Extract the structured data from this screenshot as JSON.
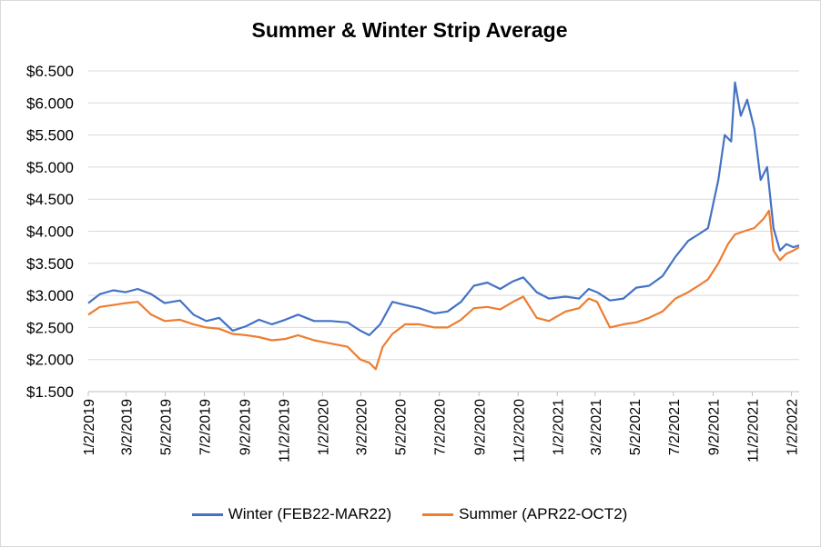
{
  "chart_data": {
    "type": "line",
    "title": "Summer & Winter Strip Average",
    "xlabel": "",
    "ylabel": "",
    "x_range": [
      "2019-01-02",
      "2022-01-14"
    ],
    "ylim": [
      1.5,
      6.5
    ],
    "y_ticks": [
      1.5,
      2.0,
      2.5,
      3.0,
      3.5,
      4.0,
      4.5,
      5.0,
      5.5,
      6.0,
      6.5
    ],
    "y_tick_labels": [
      "$1.500",
      "$2.000",
      "$2.500",
      "$3.000",
      "$3.500",
      "$4.000",
      "$4.500",
      "$5.000",
      "$5.500",
      "$6.000",
      "$6.500"
    ],
    "x_ticks": [
      "2019-01-02",
      "2019-03-02",
      "2019-05-02",
      "2019-07-02",
      "2019-09-02",
      "2019-11-02",
      "2020-01-02",
      "2020-03-02",
      "2020-05-02",
      "2020-07-02",
      "2020-09-02",
      "2020-11-02",
      "2021-01-02",
      "2021-03-02",
      "2021-05-02",
      "2021-07-02",
      "2021-09-02",
      "2021-11-02",
      "2022-01-02"
    ],
    "x_tick_labels": [
      "1/2/2019",
      "3/2/2019",
      "5/2/2019",
      "7/2/2019",
      "9/2/2019",
      "11/2/2019",
      "1/2/2020",
      "3/2/2020",
      "5/2/2020",
      "7/2/2020",
      "9/2/2020",
      "11/2/2020",
      "1/2/2021",
      "3/2/2021",
      "5/2/2021",
      "7/2/2021",
      "9/2/2021",
      "11/2/2021",
      "1/2/2022"
    ],
    "grid": true,
    "legend_position": "bottom",
    "series": [
      {
        "name": "Winter (FEB22-MAR22)",
        "color": "#4472c4",
        "points": [
          [
            "2019-01-02",
            2.88
          ],
          [
            "2019-01-20",
            3.02
          ],
          [
            "2019-02-10",
            3.08
          ],
          [
            "2019-03-01",
            3.05
          ],
          [
            "2019-03-20",
            3.1
          ],
          [
            "2019-04-10",
            3.02
          ],
          [
            "2019-05-01",
            2.88
          ],
          [
            "2019-05-25",
            2.92
          ],
          [
            "2019-06-15",
            2.7
          ],
          [
            "2019-07-05",
            2.6
          ],
          [
            "2019-07-25",
            2.65
          ],
          [
            "2019-08-15",
            2.45
          ],
          [
            "2019-09-05",
            2.52
          ],
          [
            "2019-09-25",
            2.62
          ],
          [
            "2019-10-15",
            2.55
          ],
          [
            "2019-11-05",
            2.62
          ],
          [
            "2019-11-25",
            2.7
          ],
          [
            "2019-12-20",
            2.6
          ],
          [
            "2020-01-15",
            2.6
          ],
          [
            "2020-02-10",
            2.58
          ],
          [
            "2020-03-01",
            2.45
          ],
          [
            "2020-03-15",
            2.38
          ],
          [
            "2020-04-01",
            2.55
          ],
          [
            "2020-04-20",
            2.9
          ],
          [
            "2020-05-10",
            2.85
          ],
          [
            "2020-06-01",
            2.8
          ],
          [
            "2020-06-25",
            2.72
          ],
          [
            "2020-07-15",
            2.75
          ],
          [
            "2020-08-05",
            2.9
          ],
          [
            "2020-08-25",
            3.15
          ],
          [
            "2020-09-15",
            3.2
          ],
          [
            "2020-10-05",
            3.1
          ],
          [
            "2020-10-25",
            3.22
          ],
          [
            "2020-11-10",
            3.28
          ],
          [
            "2020-12-01",
            3.05
          ],
          [
            "2020-12-20",
            2.95
          ],
          [
            "2021-01-15",
            2.98
          ],
          [
            "2021-02-05",
            2.95
          ],
          [
            "2021-02-20",
            3.1
          ],
          [
            "2021-03-05",
            3.05
          ],
          [
            "2021-03-25",
            2.92
          ],
          [
            "2021-04-15",
            2.95
          ],
          [
            "2021-05-05",
            3.12
          ],
          [
            "2021-05-25",
            3.15
          ],
          [
            "2021-06-15",
            3.3
          ],
          [
            "2021-07-05",
            3.6
          ],
          [
            "2021-07-25",
            3.85
          ],
          [
            "2021-08-10",
            3.95
          ],
          [
            "2021-08-25",
            4.05
          ],
          [
            "2021-09-10",
            4.8
          ],
          [
            "2021-09-20",
            5.5
          ],
          [
            "2021-09-30",
            5.4
          ],
          [
            "2021-10-06",
            6.32
          ],
          [
            "2021-10-15",
            5.8
          ],
          [
            "2021-10-25",
            6.05
          ],
          [
            "2021-11-05",
            5.6
          ],
          [
            "2021-11-15",
            4.8
          ],
          [
            "2021-11-25",
            5.0
          ],
          [
            "2021-12-05",
            4.05
          ],
          [
            "2021-12-15",
            3.7
          ],
          [
            "2021-12-25",
            3.8
          ],
          [
            "2022-01-05",
            3.75
          ],
          [
            "2022-01-14",
            3.78
          ]
        ]
      },
      {
        "name": "Summer  (APR22-OCT2)",
        "color": "#ed7d31",
        "points": [
          [
            "2019-01-02",
            2.7
          ],
          [
            "2019-01-20",
            2.82
          ],
          [
            "2019-02-10",
            2.85
          ],
          [
            "2019-03-01",
            2.88
          ],
          [
            "2019-03-20",
            2.9
          ],
          [
            "2019-04-10",
            2.7
          ],
          [
            "2019-05-01",
            2.6
          ],
          [
            "2019-05-25",
            2.62
          ],
          [
            "2019-06-15",
            2.55
          ],
          [
            "2019-07-05",
            2.5
          ],
          [
            "2019-07-25",
            2.48
          ],
          [
            "2019-08-15",
            2.4
          ],
          [
            "2019-09-05",
            2.38
          ],
          [
            "2019-09-25",
            2.35
          ],
          [
            "2019-10-15",
            2.3
          ],
          [
            "2019-11-05",
            2.32
          ],
          [
            "2019-11-25",
            2.38
          ],
          [
            "2019-12-20",
            2.3
          ],
          [
            "2020-01-15",
            2.25
          ],
          [
            "2020-02-10",
            2.2
          ],
          [
            "2020-03-01",
            2.0
          ],
          [
            "2020-03-15",
            1.95
          ],
          [
            "2020-03-25",
            1.85
          ],
          [
            "2020-04-05",
            2.2
          ],
          [
            "2020-04-20",
            2.4
          ],
          [
            "2020-05-10",
            2.55
          ],
          [
            "2020-06-01",
            2.55
          ],
          [
            "2020-06-25",
            2.5
          ],
          [
            "2020-07-15",
            2.5
          ],
          [
            "2020-08-05",
            2.62
          ],
          [
            "2020-08-25",
            2.8
          ],
          [
            "2020-09-15",
            2.82
          ],
          [
            "2020-10-05",
            2.78
          ],
          [
            "2020-10-25",
            2.9
          ],
          [
            "2020-11-10",
            2.98
          ],
          [
            "2020-12-01",
            2.65
          ],
          [
            "2020-12-20",
            2.6
          ],
          [
            "2021-01-15",
            2.75
          ],
          [
            "2021-02-05",
            2.8
          ],
          [
            "2021-02-20",
            2.95
          ],
          [
            "2021-03-05",
            2.9
          ],
          [
            "2021-03-25",
            2.5
          ],
          [
            "2021-04-15",
            2.55
          ],
          [
            "2021-05-05",
            2.58
          ],
          [
            "2021-05-25",
            2.65
          ],
          [
            "2021-06-15",
            2.75
          ],
          [
            "2021-07-05",
            2.95
          ],
          [
            "2021-07-25",
            3.05
          ],
          [
            "2021-08-10",
            3.15
          ],
          [
            "2021-08-25",
            3.25
          ],
          [
            "2021-09-10",
            3.5
          ],
          [
            "2021-09-25",
            3.8
          ],
          [
            "2021-10-06",
            3.95
          ],
          [
            "2021-10-20",
            4.0
          ],
          [
            "2021-11-05",
            4.05
          ],
          [
            "2021-11-20",
            4.2
          ],
          [
            "2021-11-28",
            4.32
          ],
          [
            "2021-12-05",
            3.7
          ],
          [
            "2021-12-15",
            3.55
          ],
          [
            "2021-12-25",
            3.65
          ],
          [
            "2022-01-05",
            3.7
          ],
          [
            "2022-01-14",
            3.75
          ]
        ]
      }
    ]
  }
}
